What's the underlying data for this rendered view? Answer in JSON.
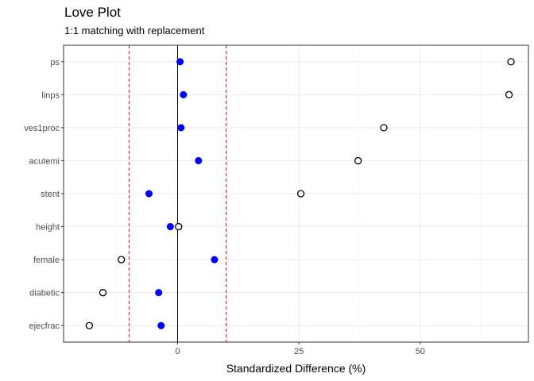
{
  "chart_data": {
    "type": "scatter",
    "title": "Love Plot",
    "subtitle": "1:1 matching with replacement",
    "xlabel": "Standardized Difference (%)",
    "ylabel": "",
    "categories": [
      "ps",
      "linps",
      "ves1proc",
      "acutemi",
      "stent",
      "height",
      "female",
      "diabetic",
      "ejecfrac"
    ],
    "series": [
      {
        "style": "filled",
        "color": "#0000ff",
        "values": [
          0.5,
          1.2,
          0.7,
          4.3,
          -5.9,
          -1.5,
          7.6,
          -3.9,
          -3.4
        ]
      },
      {
        "style": "open",
        "color": "#000000",
        "values": [
          68.7,
          68.3,
          42.5,
          37.2,
          25.4,
          0.2,
          -11.6,
          -15.4,
          -18.2
        ]
      }
    ],
    "reference_lines": {
      "zero": {
        "value": 0,
        "color": "#000000",
        "style": "solid"
      },
      "thresholds": {
        "values": [
          -10,
          10
        ],
        "color": "#ff0000",
        "style": "dashed"
      }
    },
    "xlim": [
      -23.5,
      72.3
    ],
    "xticks": [
      0,
      25,
      50
    ],
    "grid": true,
    "legend": "none"
  }
}
